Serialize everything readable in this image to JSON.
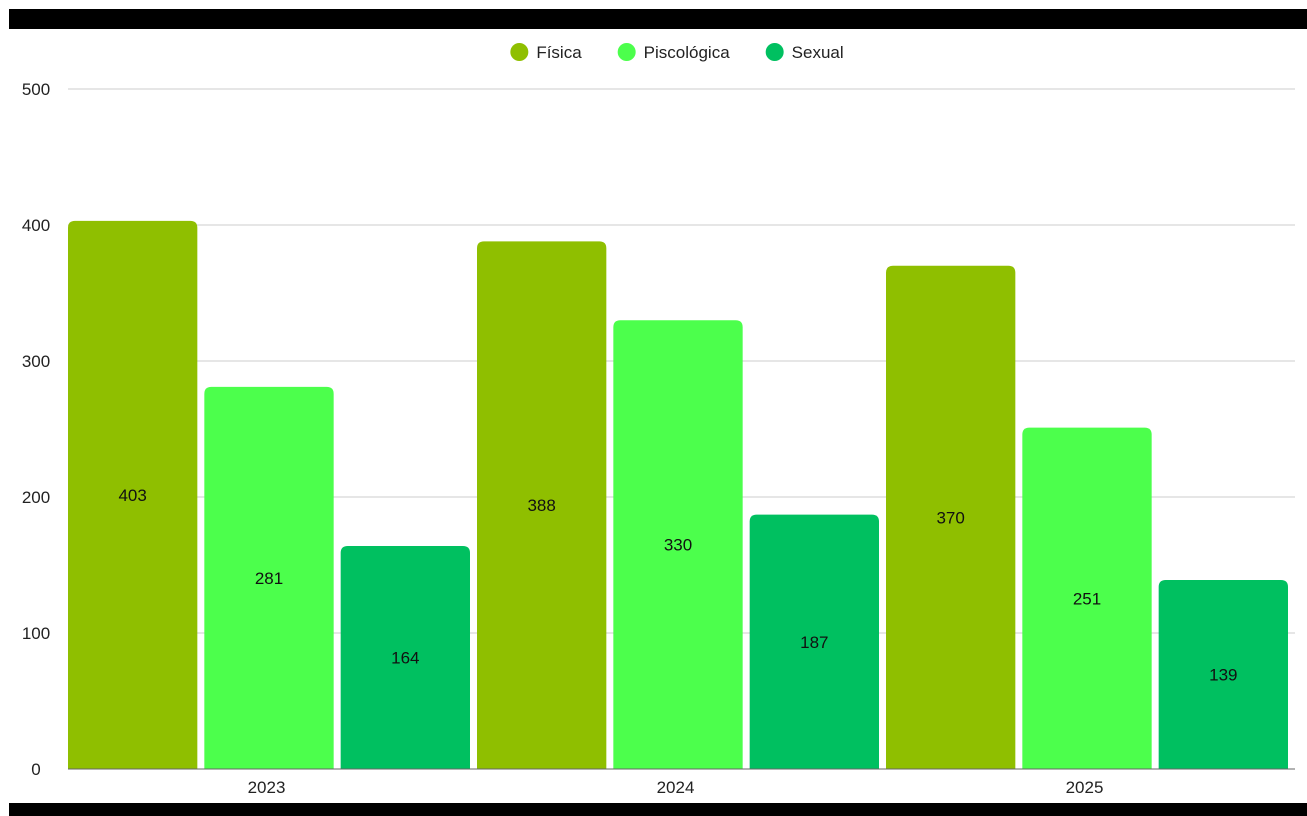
{
  "chart_data": {
    "type": "bar",
    "categories": [
      "2023",
      "2024",
      "2025"
    ],
    "series": [
      {
        "name": "Física",
        "values": [
          403,
          388,
          370
        ],
        "color": "#8fbf00"
      },
      {
        "name": "Piscológica",
        "values": [
          281,
          330,
          251
        ],
        "color": "#4cff4c"
      },
      {
        "name": "Sexual",
        "values": [
          164,
          187,
          139
        ],
        "color": "#00c060"
      }
    ],
    "ylim": [
      0,
      500
    ],
    "yticks": [
      "0",
      "100",
      "200",
      "300",
      "400",
      "500"
    ],
    "grid": true,
    "legend": "top-center",
    "data_labels": "center"
  }
}
